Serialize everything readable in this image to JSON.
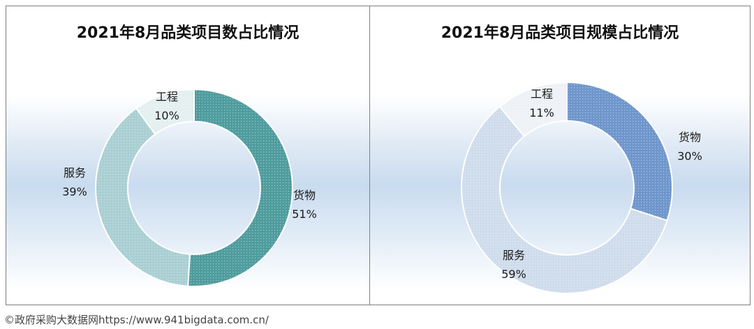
{
  "chart_data": [
    {
      "type": "pie",
      "title": "2021年8月品类项目数占比情况",
      "hole": true,
      "slices": [
        {
          "label": "货物",
          "value": 51,
          "display": "51%",
          "color": "#4f9c9e"
        },
        {
          "label": "服务",
          "value": 39,
          "display": "39%",
          "color": "#a9cfd3"
        },
        {
          "label": "工程",
          "value": 10,
          "display": "10%",
          "color": "#e4efef"
        }
      ]
    },
    {
      "type": "pie",
      "title": "2021年8月品类项目规模占比情况",
      "hole": true,
      "slices": [
        {
          "label": "货物",
          "value": 30,
          "display": "30%",
          "color": "#6f96cc"
        },
        {
          "label": "服务",
          "value": 59,
          "display": "59%",
          "color": "#cfdcec"
        },
        {
          "label": "工程",
          "value": 11,
          "display": "11%",
          "color": "#eef2f7"
        }
      ]
    }
  ],
  "source": "©政府采购大数据网https://www.941bigdata.com.cn/"
}
